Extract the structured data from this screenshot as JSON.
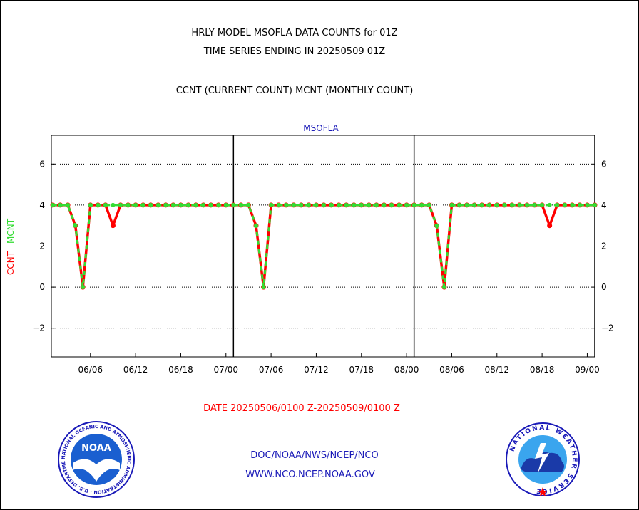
{
  "header": {
    "title_line1": "HRLY MODEL MSOFLA DATA COUNTS for 01Z",
    "title_line2": "TIME SERIES ENDING IN 20250509 01Z",
    "subtitle": "CCNT (CURRENT COUNT) MCNT (MONTHLY COUNT)"
  },
  "footer": {
    "date_range": "DATE 20250506/0100 Z-20250509/0100 Z",
    "org_path": "DOC/NOAA/NWS/NCEP/NCO",
    "website": "WWW.NCO.NCEP.NOAA.GOV"
  },
  "logos": {
    "noaa_text": "NOAA",
    "noaa_ring": "NATIONAL OCEANIC AND ATMOSPHERIC ADMINISTRATION · U.S. DEPARTMENT OF COMMERCE",
    "nws_ring": "NATIONAL WEATHER SERVICE"
  },
  "chart_data": {
    "type": "line",
    "title": "MSOFLA",
    "ylabel_ccnt": "CCNT",
    "ylabel_mcnt": "MCNT",
    "ylim": [
      -3.4,
      7.4
    ],
    "xlim": [
      0,
      72
    ],
    "yticks": [
      -2,
      0,
      2,
      4,
      6
    ],
    "ytick_labels": [
      "−2",
      "0",
      "2",
      "4",
      "6"
    ],
    "xticks": [
      {
        "x": 5,
        "label": "06/06"
      },
      {
        "x": 11,
        "label": "06/12"
      },
      {
        "x": 17,
        "label": "06/18"
      },
      {
        "x": 23,
        "label": "07/00"
      },
      {
        "x": 29,
        "label": "07/06"
      },
      {
        "x": 35,
        "label": "07/12"
      },
      {
        "x": 41,
        "label": "07/18"
      },
      {
        "x": 47,
        "label": "08/00"
      },
      {
        "x": 53,
        "label": "08/06"
      },
      {
        "x": 59,
        "label": "08/12"
      },
      {
        "x": 65,
        "label": "08/18"
      },
      {
        "x": 71,
        "label": "09/00"
      }
    ],
    "day_boundaries": [
      23,
      47,
      71
    ],
    "grid": true,
    "series": [
      {
        "name": "CCNT",
        "color": "#ff0000",
        "x": [
          0,
          1,
          2,
          3,
          4,
          5,
          6,
          7,
          8,
          9,
          10,
          11,
          12,
          13,
          14,
          15,
          16,
          17,
          18,
          19,
          20,
          21,
          22,
          23,
          24,
          25,
          26,
          27,
          28,
          29,
          30,
          31,
          32,
          33,
          34,
          35,
          36,
          37,
          38,
          39,
          40,
          41,
          42,
          43,
          44,
          45,
          46,
          47,
          48,
          49,
          50,
          51,
          52,
          53,
          54,
          55,
          56,
          57,
          58,
          59,
          60,
          61,
          62,
          63,
          64,
          65,
          66,
          67,
          68,
          69,
          70,
          71,
          72
        ],
        "values": [
          4,
          4,
          4,
          3,
          0,
          4,
          4,
          4,
          3,
          4,
          4,
          4,
          4,
          4,
          4,
          4,
          4,
          4,
          4,
          4,
          4,
          4,
          4,
          4,
          4,
          4,
          4,
          3,
          0,
          4,
          4,
          4,
          4,
          4,
          4,
          4,
          4,
          4,
          4,
          4,
          4,
          4,
          4,
          4,
          4,
          4,
          4,
          4,
          4,
          4,
          4,
          3,
          0,
          4,
          4,
          4,
          4,
          4,
          4,
          4,
          4,
          4,
          4,
          4,
          4,
          4,
          3,
          4,
          4,
          4,
          4,
          4,
          4
        ]
      },
      {
        "name": "MCNT",
        "color": "#33dd33",
        "x": [
          0,
          1,
          2,
          3,
          4,
          5,
          6,
          7,
          8,
          9,
          10,
          11,
          12,
          13,
          14,
          15,
          16,
          17,
          18,
          19,
          20,
          21,
          22,
          23,
          24,
          25,
          26,
          27,
          28,
          29,
          30,
          31,
          32,
          33,
          34,
          35,
          36,
          37,
          38,
          39,
          40,
          41,
          42,
          43,
          44,
          45,
          46,
          47,
          48,
          49,
          50,
          51,
          52,
          53,
          54,
          55,
          56,
          57,
          58,
          59,
          60,
          61,
          62,
          63,
          64,
          65,
          66,
          67,
          68,
          69,
          70,
          71,
          72
        ],
        "values": [
          4,
          4,
          4,
          3,
          0,
          4,
          4,
          4,
          4,
          4,
          4,
          4,
          4,
          4,
          4,
          4,
          4,
          4,
          4,
          4,
          4,
          4,
          4,
          4,
          4,
          4,
          4,
          3,
          0,
          4,
          4,
          4,
          4,
          4,
          4,
          4,
          4,
          4,
          4,
          4,
          4,
          4,
          4,
          4,
          4,
          4,
          4,
          4,
          4,
          4,
          4,
          3,
          0,
          4,
          4,
          4,
          4,
          4,
          4,
          4,
          4,
          4,
          4,
          4,
          4,
          4,
          4,
          4,
          4,
          4,
          4,
          4,
          4
        ]
      }
    ]
  }
}
